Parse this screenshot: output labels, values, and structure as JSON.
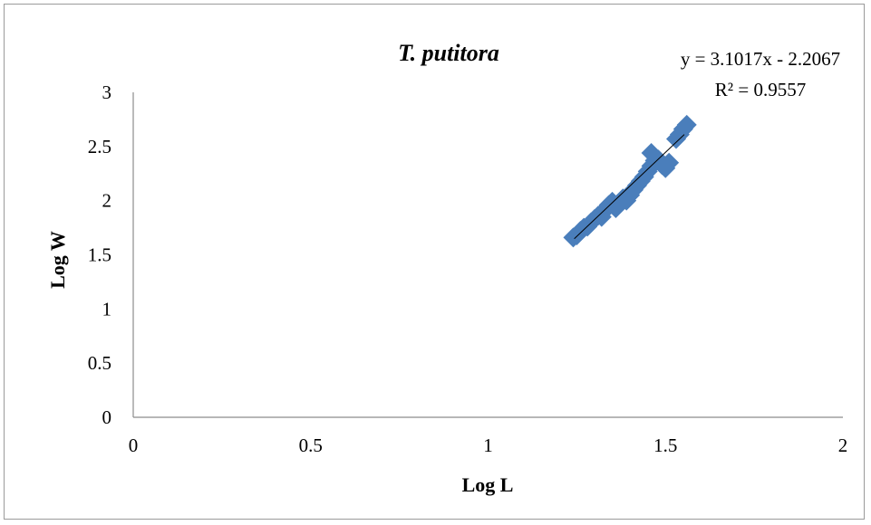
{
  "chart_data": {
    "type": "scatter",
    "title": "T. putitora",
    "xlabel": "Log L",
    "ylabel": "Log W",
    "xlim": [
      0,
      2
    ],
    "ylim": [
      0,
      3
    ],
    "x_ticks": [
      "0",
      "0.5",
      "1",
      "1.5",
      "2"
    ],
    "y_ticks": [
      "0",
      "0.5",
      "1",
      "1.5",
      "2",
      "2.5",
      "3"
    ],
    "grid": false,
    "legend": "none",
    "marker": "diamond",
    "marker_color": "#4a7ebb",
    "trendline": {
      "slope": 3.1017,
      "intercept": -2.2067,
      "x_range": [
        1.243,
        1.553
      ],
      "color": "#000000",
      "equation": "y = 3.1017x  - 2.2067",
      "r_squared": "R² = 0.9557"
    },
    "series": [
      {
        "points": [
          [
            1.24,
            1.66
          ],
          [
            1.25,
            1.68
          ],
          [
            1.26,
            1.72
          ],
          [
            1.27,
            1.75
          ],
          [
            1.28,
            1.76
          ],
          [
            1.29,
            1.8
          ],
          [
            1.3,
            1.83
          ],
          [
            1.31,
            1.86
          ],
          [
            1.32,
            1.88
          ],
          [
            1.33,
            1.92
          ],
          [
            1.34,
            1.96
          ],
          [
            1.35,
            1.99
          ],
          [
            1.32,
            1.85
          ],
          [
            1.36,
            1.93
          ],
          [
            1.38,
            2.02
          ],
          [
            1.39,
            2.0
          ],
          [
            1.4,
            2.05
          ],
          [
            1.41,
            2.1
          ],
          [
            1.42,
            2.14
          ],
          [
            1.43,
            2.18
          ],
          [
            1.44,
            2.22
          ],
          [
            1.45,
            2.27
          ],
          [
            1.46,
            2.32
          ],
          [
            1.47,
            2.37
          ],
          [
            1.46,
            2.44
          ],
          [
            1.48,
            2.38
          ],
          [
            1.49,
            2.33
          ],
          [
            1.5,
            2.3
          ],
          [
            1.51,
            2.35
          ],
          [
            1.53,
            2.57
          ],
          [
            1.54,
            2.61
          ],
          [
            1.55,
            2.66
          ],
          [
            1.56,
            2.7
          ]
        ]
      }
    ]
  }
}
